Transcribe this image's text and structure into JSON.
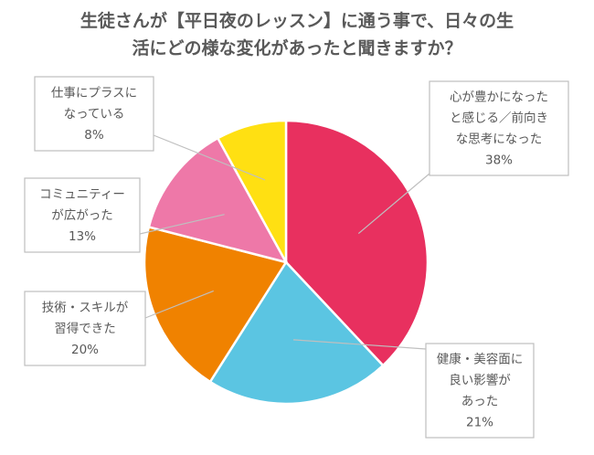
{
  "title": {
    "line1": "生徒さんが【平日夜のレッスン】に通う事で、日々の生",
    "line2": "活にどの様な変化があったと聞きますか？"
  },
  "chart_data": {
    "type": "pie",
    "start_angle_deg": 0,
    "direction": "clockwise",
    "slices": [
      {
        "label_lines": [
          "心が豊かになった",
          "と感じる／前向き",
          "な思考になった"
        ],
        "pct_label": "38%",
        "value": 38,
        "color": "#E8305F"
      },
      {
        "label_lines": [
          "健康・美容面に",
          "良い影響が",
          "あった"
        ],
        "pct_label": "21%",
        "value": 21,
        "color": "#5BC5E2"
      },
      {
        "label_lines": [
          "技術・スキルが",
          "習得できた"
        ],
        "pct_label": "20%",
        "value": 20,
        "color": "#F08200"
      },
      {
        "label_lines": [
          "コミュニティー",
          "が広がった"
        ],
        "pct_label": "13%",
        "value": 13,
        "color": "#EE78A8"
      },
      {
        "label_lines": [
          "仕事にプラスに",
          "なっている"
        ],
        "pct_label": "8%",
        "value": 8,
        "color": "#FFE012"
      }
    ]
  }
}
